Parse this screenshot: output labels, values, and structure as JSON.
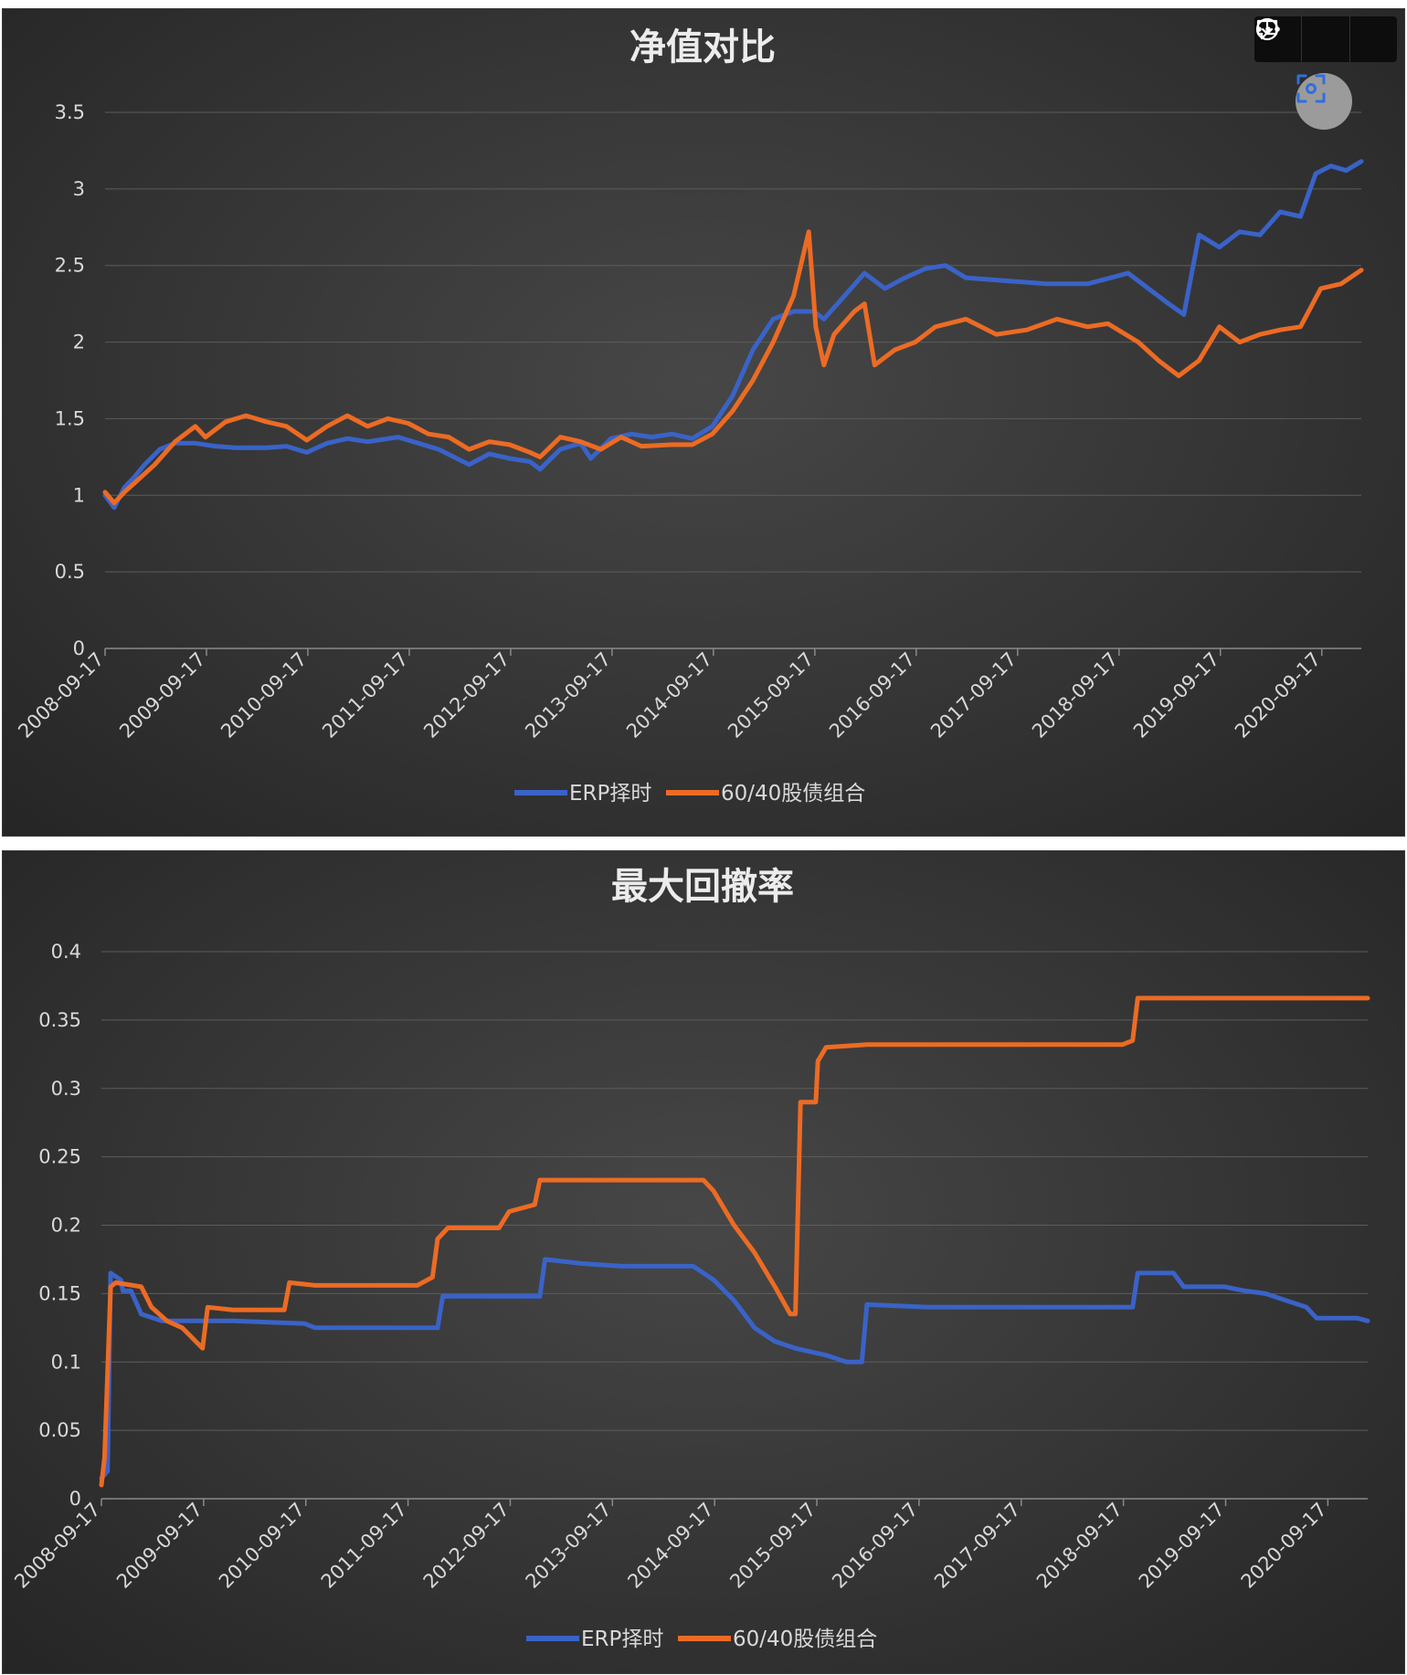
{
  "toolbar": {
    "icons": [
      "comment-icon",
      "download-icon",
      "more-icon"
    ],
    "lens_icon": "lens-icon"
  },
  "colors": {
    "erp": "#3a63c8",
    "balanced": "#ec6b24",
    "grid": "#5c5c5c",
    "text": "#d9d9d9"
  },
  "chart_data": [
    {
      "type": "line",
      "title": "净值对比",
      "xlabel": "",
      "ylabel": "",
      "x_ticks": [
        "2008-09-17",
        "2009-09-17",
        "2010-09-17",
        "2011-09-17",
        "2012-09-17",
        "2013-09-17",
        "2014-09-17",
        "2015-09-17",
        "2016-09-17",
        "2017-09-17",
        "2018-09-17",
        "2019-09-17",
        "2020-09-17"
      ],
      "y_ticks": [
        "0",
        "0.5",
        "1",
        "1.5",
        "2",
        "2.5",
        "3",
        "3.5"
      ],
      "ylim": [
        0,
        3.5
      ],
      "xlim": [
        2008.71,
        2021.1
      ],
      "legend_position": "bottom",
      "grid": true,
      "series": [
        {
          "name": "ERP择时",
          "color": "#3a63c8",
          "points": [
            [
              2008.71,
              1.0
            ],
            [
              2008.8,
              0.92
            ],
            [
              2008.9,
              1.05
            ],
            [
              2009.0,
              1.12
            ],
            [
              2009.1,
              1.2
            ],
            [
              2009.25,
              1.3
            ],
            [
              2009.4,
              1.34
            ],
            [
              2009.6,
              1.34
            ],
            [
              2009.8,
              1.32
            ],
            [
              2010.0,
              1.31
            ],
            [
              2010.3,
              1.31
            ],
            [
              2010.5,
              1.32
            ],
            [
              2010.7,
              1.28
            ],
            [
              2010.9,
              1.34
            ],
            [
              2011.1,
              1.37
            ],
            [
              2011.3,
              1.35
            ],
            [
              2011.6,
              1.38
            ],
            [
              2011.8,
              1.34
            ],
            [
              2012.0,
              1.3
            ],
            [
              2012.3,
              1.2
            ],
            [
              2012.5,
              1.27
            ],
            [
              2012.7,
              1.24
            ],
            [
              2012.9,
              1.22
            ],
            [
              2013.0,
              1.17
            ],
            [
              2013.2,
              1.3
            ],
            [
              2013.4,
              1.34
            ],
            [
              2013.5,
              1.24
            ],
            [
              2013.7,
              1.37
            ],
            [
              2013.9,
              1.4
            ],
            [
              2014.1,
              1.38
            ],
            [
              2014.3,
              1.4
            ],
            [
              2014.5,
              1.37
            ],
            [
              2014.7,
              1.45
            ],
            [
              2014.9,
              1.65
            ],
            [
              2015.1,
              1.95
            ],
            [
              2015.3,
              2.15
            ],
            [
              2015.5,
              2.2
            ],
            [
              2015.7,
              2.2
            ],
            [
              2015.8,
              2.15
            ],
            [
              2016.0,
              2.3
            ],
            [
              2016.2,
              2.45
            ],
            [
              2016.4,
              2.35
            ],
            [
              2016.6,
              2.42
            ],
            [
              2016.8,
              2.48
            ],
            [
              2017.0,
              2.5
            ],
            [
              2017.2,
              2.42
            ],
            [
              2017.6,
              2.4
            ],
            [
              2018.0,
              2.38
            ],
            [
              2018.4,
              2.38
            ],
            [
              2018.8,
              2.45
            ],
            [
              2019.0,
              2.35
            ],
            [
              2019.2,
              2.25
            ],
            [
              2019.35,
              2.18
            ],
            [
              2019.5,
              2.7
            ],
            [
              2019.7,
              2.62
            ],
            [
              2019.9,
              2.72
            ],
            [
              2020.1,
              2.7
            ],
            [
              2020.3,
              2.85
            ],
            [
              2020.5,
              2.82
            ],
            [
              2020.65,
              3.1
            ],
            [
              2020.8,
              3.15
            ],
            [
              2020.95,
              3.12
            ],
            [
              2021.1,
              3.18
            ]
          ]
        },
        {
          "name": "60/40股债组合",
          "color": "#ec6b24",
          "points": [
            [
              2008.71,
              1.02
            ],
            [
              2008.8,
              0.95
            ],
            [
              2008.9,
              1.02
            ],
            [
              2009.0,
              1.08
            ],
            [
              2009.2,
              1.2
            ],
            [
              2009.4,
              1.35
            ],
            [
              2009.6,
              1.45
            ],
            [
              2009.7,
              1.38
            ],
            [
              2009.9,
              1.48
            ],
            [
              2010.1,
              1.52
            ],
            [
              2010.3,
              1.48
            ],
            [
              2010.5,
              1.45
            ],
            [
              2010.7,
              1.36
            ],
            [
              2010.9,
              1.45
            ],
            [
              2011.1,
              1.52
            ],
            [
              2011.3,
              1.45
            ],
            [
              2011.5,
              1.5
            ],
            [
              2011.7,
              1.47
            ],
            [
              2011.9,
              1.4
            ],
            [
              2012.1,
              1.38
            ],
            [
              2012.3,
              1.3
            ],
            [
              2012.5,
              1.35
            ],
            [
              2012.7,
              1.33
            ],
            [
              2012.9,
              1.28
            ],
            [
              2013.0,
              1.25
            ],
            [
              2013.2,
              1.38
            ],
            [
              2013.4,
              1.35
            ],
            [
              2013.6,
              1.3
            ],
            [
              2013.8,
              1.38
            ],
            [
              2014.0,
              1.32
            ],
            [
              2014.3,
              1.33
            ],
            [
              2014.5,
              1.33
            ],
            [
              2014.7,
              1.4
            ],
            [
              2014.9,
              1.55
            ],
            [
              2015.1,
              1.75
            ],
            [
              2015.3,
              2.0
            ],
            [
              2015.5,
              2.3
            ],
            [
              2015.65,
              2.72
            ],
            [
              2015.72,
              2.1
            ],
            [
              2015.8,
              1.85
            ],
            [
              2015.9,
              2.05
            ],
            [
              2016.1,
              2.2
            ],
            [
              2016.2,
              2.25
            ],
            [
              2016.3,
              1.85
            ],
            [
              2016.5,
              1.95
            ],
            [
              2016.7,
              2.0
            ],
            [
              2016.9,
              2.1
            ],
            [
              2017.2,
              2.15
            ],
            [
              2017.5,
              2.05
            ],
            [
              2017.8,
              2.08
            ],
            [
              2018.1,
              2.15
            ],
            [
              2018.4,
              2.1
            ],
            [
              2018.6,
              2.12
            ],
            [
              2018.9,
              2.0
            ],
            [
              2019.1,
              1.88
            ],
            [
              2019.3,
              1.78
            ],
            [
              2019.5,
              1.88
            ],
            [
              2019.7,
              2.1
            ],
            [
              2019.9,
              2.0
            ],
            [
              2020.1,
              2.05
            ],
            [
              2020.3,
              2.08
            ],
            [
              2020.5,
              2.1
            ],
            [
              2020.7,
              2.35
            ],
            [
              2020.9,
              2.38
            ],
            [
              2021.1,
              2.47
            ]
          ]
        }
      ]
    },
    {
      "type": "line",
      "title": "最大回撤率",
      "xlabel": "",
      "ylabel": "",
      "x_ticks": [
        "2008-09-17",
        "2009-09-17",
        "2010-09-17",
        "2011-09-17",
        "2012-09-17",
        "2013-09-17",
        "2014-09-17",
        "2015-09-17",
        "2016-09-17",
        "2017-09-17",
        "2018-09-17",
        "2019-09-17",
        "2020-09-17"
      ],
      "y_ticks": [
        "0",
        "0.05",
        "0.1",
        "0.15",
        "0.2",
        "0.25",
        "0.3",
        "0.35",
        "0.4"
      ],
      "ylim": [
        0,
        0.4
      ],
      "xlim": [
        2008.71,
        2021.1
      ],
      "legend_position": "bottom",
      "grid": true,
      "series": [
        {
          "name": "ERP择时",
          "color": "#3a63c8",
          "points": [
            [
              2008.71,
              0.015
            ],
            [
              2008.77,
              0.02
            ],
            [
              2008.8,
              0.165
            ],
            [
              2008.9,
              0.16
            ],
            [
              2008.92,
              0.152
            ],
            [
              2009.0,
              0.152
            ],
            [
              2009.1,
              0.135
            ],
            [
              2009.3,
              0.13
            ],
            [
              2010.0,
              0.13
            ],
            [
              2010.7,
              0.128
            ],
            [
              2010.8,
              0.125
            ],
            [
              2012.0,
              0.125
            ],
            [
              2012.05,
              0.148
            ],
            [
              2013.0,
              0.148
            ],
            [
              2013.05,
              0.175
            ],
            [
              2013.4,
              0.172
            ],
            [
              2013.8,
              0.17
            ],
            [
              2014.5,
              0.17
            ],
            [
              2014.7,
              0.16
            ],
            [
              2014.9,
              0.145
            ],
            [
              2015.1,
              0.125
            ],
            [
              2015.3,
              0.115
            ],
            [
              2015.5,
              0.11
            ],
            [
              2015.8,
              0.105
            ],
            [
              2016.0,
              0.1
            ],
            [
              2016.15,
              0.1
            ],
            [
              2016.2,
              0.142
            ],
            [
              2016.8,
              0.14
            ],
            [
              2018.8,
              0.14
            ],
            [
              2018.85,
              0.165
            ],
            [
              2019.2,
              0.165
            ],
            [
              2019.3,
              0.155
            ],
            [
              2019.7,
              0.155
            ],
            [
              2019.9,
              0.152
            ],
            [
              2020.1,
              0.15
            ],
            [
              2020.3,
              0.145
            ],
            [
              2020.5,
              0.14
            ],
            [
              2020.6,
              0.132
            ],
            [
              2021.0,
              0.132
            ],
            [
              2021.1,
              0.13
            ]
          ]
        },
        {
          "name": "60/40股债组合",
          "color": "#ec6b24",
          "points": [
            [
              2008.71,
              0.01
            ],
            [
              2008.74,
              0.03
            ],
            [
              2008.8,
              0.155
            ],
            [
              2008.85,
              0.158
            ],
            [
              2009.1,
              0.155
            ],
            [
              2009.2,
              0.14
            ],
            [
              2009.35,
              0.13
            ],
            [
              2009.5,
              0.125
            ],
            [
              2009.7,
              0.11
            ],
            [
              2009.75,
              0.14
            ],
            [
              2010.0,
              0.138
            ],
            [
              2010.5,
              0.138
            ],
            [
              2010.55,
              0.158
            ],
            [
              2010.8,
              0.156
            ],
            [
              2011.8,
              0.156
            ],
            [
              2011.95,
              0.162
            ],
            [
              2012.0,
              0.19
            ],
            [
              2012.1,
              0.198
            ],
            [
              2012.6,
              0.198
            ],
            [
              2012.7,
              0.21
            ],
            [
              2012.95,
              0.215
            ],
            [
              2013.0,
              0.233
            ],
            [
              2014.1,
              0.233
            ],
            [
              2014.6,
              0.233
            ],
            [
              2014.7,
              0.225
            ],
            [
              2014.9,
              0.2
            ],
            [
              2015.1,
              0.18
            ],
            [
              2015.3,
              0.155
            ],
            [
              2015.45,
              0.135
            ],
            [
              2015.5,
              0.135
            ],
            [
              2015.55,
              0.29
            ],
            [
              2015.7,
              0.29
            ],
            [
              2015.72,
              0.32
            ],
            [
              2015.8,
              0.33
            ],
            [
              2016.2,
              0.332
            ],
            [
              2016.8,
              0.332
            ],
            [
              2018.7,
              0.332
            ],
            [
              2018.8,
              0.335
            ],
            [
              2018.85,
              0.366
            ],
            [
              2021.1,
              0.366
            ]
          ]
        }
      ]
    }
  ]
}
